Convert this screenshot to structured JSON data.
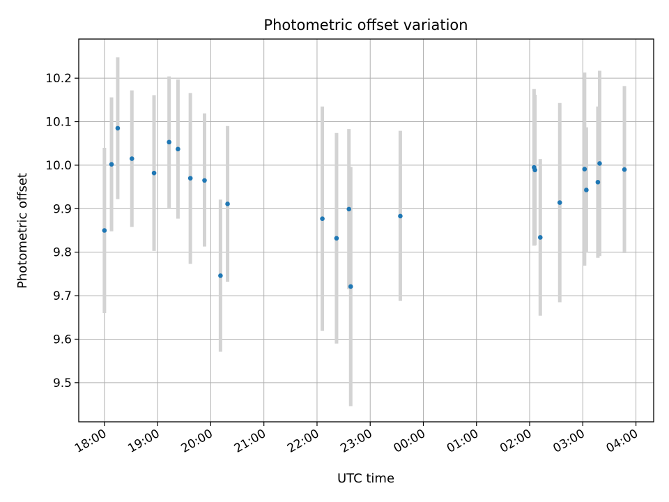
{
  "chart_data": {
    "type": "scatter",
    "title": "Photometric offset variation",
    "xlabel": "UTC time",
    "ylabel": "Photometric offset",
    "x_axis": {
      "kind": "time",
      "range": [
        "17:31",
        "04:20"
      ],
      "ticks": [
        "18:00",
        "19:00",
        "20:00",
        "21:00",
        "22:00",
        "23:00",
        "00:00",
        "01:00",
        "02:00",
        "03:00",
        "04:00"
      ]
    },
    "y_axis": {
      "range": [
        9.41,
        10.29
      ],
      "ticks": [
        "9.5",
        "9.6",
        "9.7",
        "9.8",
        "9.9",
        "10.0",
        "10.1",
        "10.2"
      ]
    },
    "grid": true,
    "legend": "none",
    "colors": {
      "point": "#1f77b4",
      "errorbar": "#d3d3d3",
      "grid": "#b0b0b0"
    },
    "points": [
      {
        "time": "18:00",
        "y": 9.85,
        "lo": 9.66,
        "hi": 10.04
      },
      {
        "time": "18:08",
        "y": 10.002,
        "lo": 9.848,
        "hi": 10.156
      },
      {
        "time": "18:15",
        "y": 10.085,
        "lo": 9.922,
        "hi": 10.248
      },
      {
        "time": "18:31",
        "y": 10.015,
        "lo": 9.858,
        "hi": 10.172
      },
      {
        "time": "18:56",
        "y": 9.982,
        "lo": 9.803,
        "hi": 10.161
      },
      {
        "time": "19:13",
        "y": 10.053,
        "lo": 9.902,
        "hi": 10.204
      },
      {
        "time": "19:23",
        "y": 10.037,
        "lo": 9.877,
        "hi": 10.197
      },
      {
        "time": "19:37",
        "y": 9.97,
        "lo": 9.773,
        "hi": 10.166
      },
      {
        "time": "19:53",
        "y": 9.965,
        "lo": 9.813,
        "hi": 10.119
      },
      {
        "time": "20:11",
        "y": 9.746,
        "lo": 9.571,
        "hi": 9.921
      },
      {
        "time": "20:19",
        "y": 9.911,
        "lo": 9.732,
        "hi": 10.09
      },
      {
        "time": "22:06",
        "y": 9.877,
        "lo": 9.619,
        "hi": 10.135
      },
      {
        "time": "22:22",
        "y": 9.832,
        "lo": 9.59,
        "hi": 10.074
      },
      {
        "time": "22:36",
        "y": 9.899,
        "lo": 9.715,
        "hi": 10.083
      },
      {
        "time": "22:38",
        "y": 9.721,
        "lo": 9.446,
        "hi": 9.996
      },
      {
        "time": "23:34",
        "y": 9.883,
        "lo": 9.688,
        "hi": 10.079
      },
      {
        "time": "02:05",
        "y": 9.995,
        "lo": 9.815,
        "hi": 10.175
      },
      {
        "time": "02:06",
        "y": 9.989,
        "lo": 9.816,
        "hi": 10.162
      },
      {
        "time": "02:12",
        "y": 9.834,
        "lo": 9.654,
        "hi": 10.014
      },
      {
        "time": "02:34",
        "y": 9.914,
        "lo": 9.685,
        "hi": 10.143
      },
      {
        "time": "03:02",
        "y": 9.991,
        "lo": 9.769,
        "hi": 10.213
      },
      {
        "time": "03:04",
        "y": 9.943,
        "lo": 9.799,
        "hi": 10.087
      },
      {
        "time": "03:17",
        "y": 9.961,
        "lo": 9.787,
        "hi": 10.135
      },
      {
        "time": "03:19",
        "y": 10.004,
        "lo": 9.791,
        "hi": 10.217
      },
      {
        "time": "03:47",
        "y": 9.99,
        "lo": 9.798,
        "hi": 10.182
      }
    ]
  }
}
